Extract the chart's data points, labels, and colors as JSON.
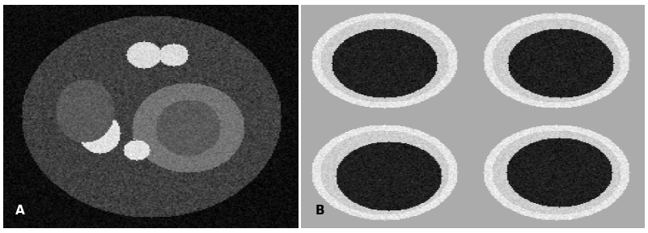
{
  "fig_width": 8.01,
  "fig_height": 2.88,
  "dpi": 100,
  "border_color": "#ffffff",
  "border_linewidth": 2,
  "panel_A": {
    "label": "A",
    "label_color": "#ffffff",
    "label_fontsize": 11,
    "bg_color": "#000000",
    "image_bg": "#1a1a1a"
  },
  "panel_B": {
    "label": "B",
    "label_color": "#000000",
    "label_fontsize": 11,
    "bg_color": "#aaaaaa"
  },
  "outer_border_color": "#888888",
  "outer_border_linewidth": 1
}
